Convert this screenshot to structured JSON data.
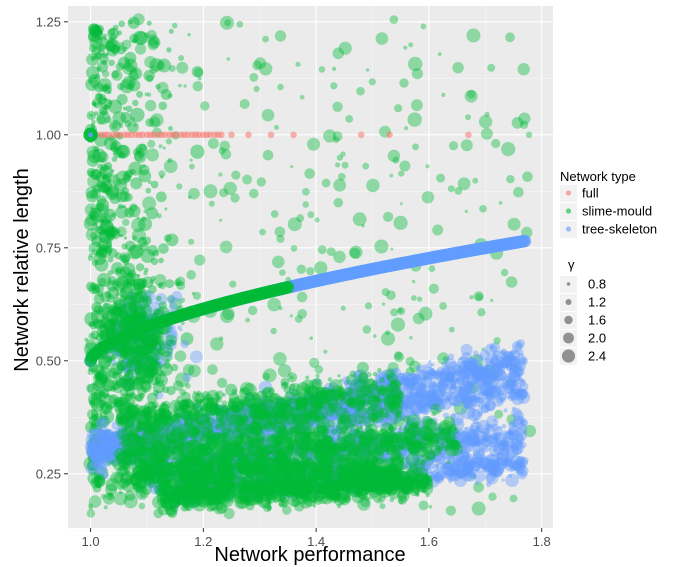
{
  "chart_data": {
    "type": "scatter",
    "xlabel": "Network performance",
    "ylabel": "Network relative length",
    "xlim": [
      0.96,
      1.82
    ],
    "ylim": [
      0.13,
      1.285
    ],
    "x_ticks": [
      1.0,
      1.2,
      1.4,
      1.6,
      1.8
    ],
    "x_tick_labels": [
      "1.0",
      "1.2",
      "1.4",
      "1.6",
      "1.8"
    ],
    "y_ticks": [
      0.25,
      0.5,
      0.75,
      1.0,
      1.25
    ],
    "y_tick_labels": [
      "0.25",
      "0.50",
      "0.75",
      "1.00",
      "1.25"
    ],
    "grid": true,
    "legend_position": "right",
    "legend_color_title": "Network type",
    "legend_size_title": "γ",
    "series": [
      {
        "name": "full",
        "color": "#F8766D",
        "points": [
          [
            1.0,
            1.0
          ],
          [
            1.02,
            1.0
          ],
          [
            1.04,
            1.0
          ],
          [
            1.06,
            1.0
          ],
          [
            1.08,
            1.0
          ],
          [
            1.1,
            1.0
          ],
          [
            1.12,
            1.0
          ],
          [
            1.14,
            1.0
          ],
          [
            1.16,
            1.0
          ],
          [
            1.18,
            1.0
          ],
          [
            1.2,
            1.0
          ],
          [
            1.22,
            1.0
          ],
          [
            1.25,
            1.0
          ],
          [
            1.28,
            1.0
          ],
          [
            1.32,
            1.0
          ],
          [
            1.36,
            1.0
          ],
          [
            1.48,
            1.0
          ],
          [
            1.53,
            1.0
          ],
          [
            1.67,
            1.0
          ]
        ]
      },
      {
        "name": "slime-mould",
        "color": "#00BA38",
        "points": [
          [
            1.0,
            0.5
          ],
          [
            1.05,
            0.53
          ],
          [
            1.1,
            0.56
          ],
          [
            1.15,
            0.59
          ],
          [
            1.2,
            0.61
          ],
          [
            1.25,
            0.63
          ],
          [
            1.3,
            0.65
          ],
          [
            1.05,
            0.9
          ],
          [
            1.02,
            1.1
          ],
          [
            1.08,
            1.2
          ],
          [
            1.15,
            0.85
          ],
          [
            1.3,
            1.1
          ],
          [
            1.45,
            0.9
          ],
          [
            1.6,
            1.15
          ],
          [
            1.7,
            0.85
          ],
          [
            1.75,
            1.25
          ],
          [
            1.1,
            0.3
          ],
          [
            1.2,
            0.3
          ],
          [
            1.3,
            0.27
          ],
          [
            1.4,
            0.25
          ],
          [
            1.5,
            0.22
          ],
          [
            1.15,
            0.2
          ],
          [
            1.25,
            0.2
          ],
          [
            1.6,
            0.24
          ],
          [
            1.35,
            0.4
          ],
          [
            1.55,
            0.6
          ],
          [
            1.65,
            0.45
          ]
        ]
      },
      {
        "name": "tree-skeleton",
        "color": "#619CFF",
        "points": [
          [
            1.0,
            0.5
          ],
          [
            1.1,
            0.55
          ],
          [
            1.2,
            0.6
          ],
          [
            1.3,
            0.64
          ],
          [
            1.4,
            0.68
          ],
          [
            1.5,
            0.71
          ],
          [
            1.6,
            0.73
          ],
          [
            1.7,
            0.75
          ],
          [
            1.77,
            0.765
          ],
          [
            1.2,
            0.33
          ],
          [
            1.4,
            0.38
          ],
          [
            1.6,
            0.42
          ],
          [
            1.77,
            0.44
          ],
          [
            1.3,
            0.42
          ],
          [
            1.5,
            0.45
          ],
          [
            1.77,
            0.5
          ],
          [
            1.4,
            0.28
          ],
          [
            1.6,
            0.3
          ],
          [
            1.77,
            0.32
          ],
          [
            1.0,
            1.0
          ],
          [
            1.0,
            0.3
          ]
        ]
      }
    ],
    "size_legend": {
      "labels": [
        "0.8",
        "1.2",
        "1.6",
        "2.0",
        "2.4"
      ],
      "values": [
        0.8,
        1.2,
        1.6,
        2.0,
        2.4
      ]
    }
  },
  "legend": {
    "color_title": "Network type",
    "items": [
      {
        "label": "full",
        "color": "#F8766D"
      },
      {
        "label": "slime-mould",
        "color": "#00BA38"
      },
      {
        "label": "tree-skeleton",
        "color": "#619CFF"
      }
    ],
    "size_title": "γ",
    "size_items": [
      "0.8",
      "1.2",
      "1.6",
      "2.0",
      "2.4"
    ]
  },
  "colors": {
    "panel_bg": "#EBEBEB",
    "grid_major": "#FFFFFF",
    "grid_minor": "#F5F5F5",
    "full": "#F8766D",
    "slime_mould": "#00BA38",
    "tree_skeleton": "#619CFF"
  }
}
